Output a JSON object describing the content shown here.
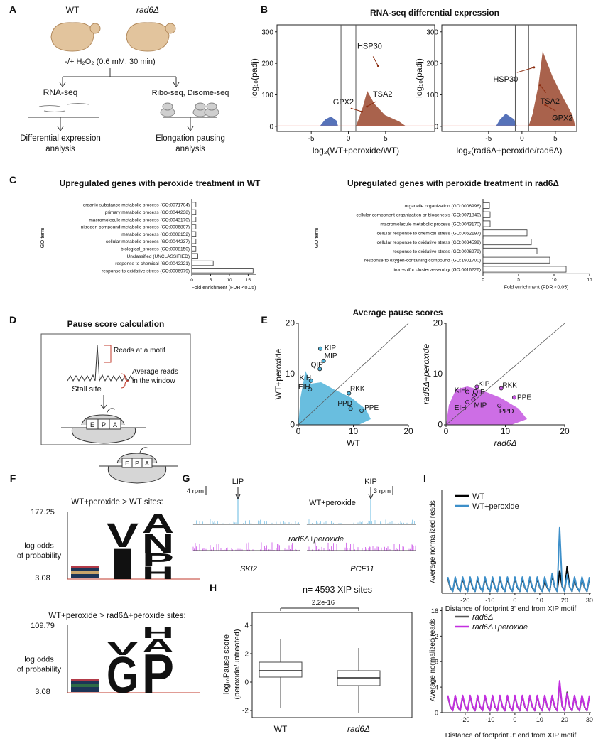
{
  "panel_labels": [
    "A",
    "B",
    "C",
    "D",
    "E",
    "F",
    "G",
    "H",
    "I"
  ],
  "A": {
    "strains": [
      "WT",
      "rad6Δ"
    ],
    "treatment": "-/+ H₂O₂ (0.6 mM, 30 min)",
    "branches": [
      "RNA-seq",
      "Ribo-seq, Disome-seq"
    ],
    "outcomes": [
      [
        "Differential expression",
        "analysis"
      ],
      [
        "Elongation pausing",
        "analysis"
      ]
    ]
  },
  "B": {
    "title": "RNA-seq differential expression",
    "plots": [
      {
        "type": "volcano",
        "xlabel": "log₂(WT+peroxide/WT)",
        "ylabel": "log₁₀(padj)",
        "xlim": [
          -9.6,
          11.6
        ],
        "ylim": [
          -16,
          322
        ],
        "xticks": [
          -5,
          0,
          5
        ],
        "yticks": [
          0,
          100,
          200,
          300
        ],
        "vlines": [
          -1,
          1
        ],
        "hline": 1.3,
        "genes": [
          {
            "name": "HSP30",
            "x": 4.0,
            "y": 192
          },
          {
            "name": "TSA2",
            "x": 2.5,
            "y": 63
          },
          {
            "name": "GPX2",
            "x": 1.8,
            "y": 47
          }
        ]
      },
      {
        "type": "volcano",
        "xlabel": "log₂(rad6Δ+peroxide/rad6Δ)",
        "ylabel": "log₁₀(padj)",
        "xlim": [
          -12,
          8.2
        ],
        "ylim": [
          -16,
          322
        ],
        "xticks": [
          -5,
          0,
          5
        ],
        "yticks": [
          0,
          100,
          200,
          300
        ],
        "vlines": [
          -1,
          1
        ],
        "hline": 1.3,
        "genes": [
          {
            "name": "HSP30",
            "x": 1.8,
            "y": 187
          },
          {
            "name": "TSA2",
            "x": 2.7,
            "y": 131
          },
          {
            "name": "GPX2",
            "x": 3.5,
            "y": 68
          }
        ]
      }
    ]
  },
  "C": {
    "charts": [
      {
        "type": "hbar",
        "title": "Upregulated genes with peroxide treatment in WT",
        "ylabel": "GO term",
        "xlabel": "Fold enrichment (FDR <0.05)",
        "xlim": [
          0,
          17
        ],
        "xticks": [
          0,
          5,
          10,
          15
        ],
        "categories": [
          "organic substance metabolic process (GO:0071704)",
          "primary metabolic process (GO:0044238)",
          "macromolecule metabolic process (GO:0043170)",
          "nitrogen compound metabolic process (GO:0006807)",
          "metabolic process (GO:0008152)",
          "cellular metabolic process (GO:0044237)",
          "biological_process (GO:0008150)",
          "Unclassified (UNCLASSIFIED)",
          "response to chemical (GO:0042221)",
          "response to oxidative stress (GO:0006979)"
        ],
        "values": [
          1.1,
          1.1,
          1.1,
          1.1,
          1.1,
          1.1,
          1.1,
          1.6,
          5.7,
          16.3
        ]
      },
      {
        "type": "hbar",
        "title": "Upregulated genes with peroxide treatment in rad6Δ",
        "ylabel": "GO term",
        "xlabel": "Fold enrichment (FDR <0.05)",
        "xlim": [
          0,
          15
        ],
        "xticks": [
          0,
          5,
          10,
          15
        ],
        "categories": [
          "organelle organization (GO:0006996)",
          "cellular component organization or biogenesis (GO:0071840)",
          "macromolecule metabolic process (GO:0043170)",
          "cellular response to chemical stress (GO:0062197)",
          "cellular response to oxidative stress (GO:0034599)",
          "response to oxidative stress (GO:0006979)",
          "response to oxygen-containing compound (GO:1901700)",
          "iron-sulfur cluster assembly (GO:0016226)"
        ],
        "values": [
          0.9,
          1.0,
          1.0,
          6.2,
          6.8,
          7.6,
          9.4,
          11.7
        ]
      }
    ]
  },
  "D": {
    "title": "Pause score calculation",
    "reads_label": "Reads at a motif",
    "window_label": [
      "Average reads",
      "in the window"
    ],
    "stall_label": "Stall site",
    "sites": [
      "E",
      "P",
      "A"
    ]
  },
  "E": {
    "title": "Average pause scores",
    "plots": [
      {
        "type": "scatter",
        "xlabel": "WT",
        "ylabel": "WT+peroxide",
        "color": "#4fb3d9",
        "xlim": [
          0,
          20
        ],
        "ylim": [
          0,
          20
        ],
        "xticks": [
          0,
          10,
          20
        ],
        "yticks": [
          0,
          10,
          20
        ],
        "points": [
          {
            "label": "KIP",
            "x": 4.0,
            "y": 15.0
          },
          {
            "label": "MIP",
            "x": 4.6,
            "y": 12.6
          },
          {
            "label": "QIP",
            "x": 3.9,
            "y": 11.0
          },
          {
            "label": "KIH",
            "x": 2.3,
            "y": 8.7
          },
          {
            "label": "EIH",
            "x": 2.1,
            "y": 7.0
          },
          {
            "label": "RKK",
            "x": 9.2,
            "y": 6.2
          },
          {
            "label": "PPD",
            "x": 9.5,
            "y": 3.2
          },
          {
            "label": "PPE",
            "x": 11.5,
            "y": 2.8
          }
        ]
      },
      {
        "type": "scatter",
        "xlabel": "rad6Δ",
        "ylabel": "rad6Δ+peroxide",
        "color": "#c455e0",
        "xlim": [
          0,
          20
        ],
        "ylim": [
          0,
          20
        ],
        "xticks": [
          0,
          10,
          20
        ],
        "yticks": [
          0,
          10,
          20
        ],
        "points": [
          {
            "label": "KIP",
            "x": 5.2,
            "y": 7.5
          },
          {
            "label": "MIP",
            "x": 4.6,
            "y": 5.0
          },
          {
            "label": "QIP",
            "x": 4.8,
            "y": 5.9
          },
          {
            "label": "KIH",
            "x": 3.6,
            "y": 6.5
          },
          {
            "label": "EIH",
            "x": 3.6,
            "y": 4.5
          },
          {
            "label": "RKK",
            "x": 9.3,
            "y": 7.2
          },
          {
            "label": "PPD",
            "x": 9.0,
            "y": 3.8
          },
          {
            "label": "PPE",
            "x": 11.5,
            "y": 5.4
          }
        ]
      }
    ]
  },
  "F": {
    "sites": [
      "E",
      "P",
      "A"
    ],
    "ylabel": [
      "log odds",
      "of probability"
    ],
    "logos": [
      {
        "title": "WT+peroxide > WT sites:",
        "ymax": 177.25,
        "ymin": 3.08,
        "letters": [
          {
            "char": "V",
            "color": "#111"
          },
          {
            "char": "I",
            "color": "#111"
          },
          {
            "char": "A",
            "color": "#1d3557"
          },
          {
            "char": "N",
            "color": "#c9a46a"
          },
          {
            "char": "P",
            "color": "#2e6b45"
          },
          {
            "char": "H",
            "color": "#1d3557"
          }
        ]
      },
      {
        "title": "WT+peroxide > rad6Δ+peroxide sites:",
        "ymax": 109.79,
        "ymin": 3.08,
        "letters": [
          {
            "char": "V",
            "color": "#111"
          },
          {
            "char": "G",
            "color": "#2e6b45"
          },
          {
            "char": "H",
            "color": "#1d3557"
          },
          {
            "char": "A",
            "color": "#1d3557"
          },
          {
            "char": "P",
            "color": "#2e6b45"
          }
        ]
      }
    ]
  },
  "G": {
    "scales": [
      "4 rpm",
      "3 rpm"
    ],
    "motifs": [
      "LIP",
      "KIP"
    ],
    "tracks": [
      "WT+peroxide",
      "rad6Δ+peroxide"
    ],
    "genes": [
      "SKI2",
      "PCF11"
    ]
  },
  "H": {
    "type": "box",
    "title": "n= 4593 XIP sites",
    "pvalue": "2.2e-16",
    "ylabel": [
      "log₁₀Pause score",
      "(peroxide/untreated)"
    ],
    "categories": [
      "WT",
      "rad6Δ"
    ],
    "ylim": [
      -2.5,
      4.9
    ],
    "yticks": [
      -2,
      0,
      2,
      4
    ],
    "boxes": [
      {
        "min": -1.8,
        "q1": 0.35,
        "median": 0.8,
        "q3": 1.4,
        "max": 3.0
      },
      {
        "min": -2.2,
        "q1": -0.25,
        "median": 0.3,
        "q3": 0.8,
        "max": 2.4
      }
    ]
  },
  "I": {
    "xlabel": "Distance of footprint 3' end from XIP motif",
    "ylabel": "Average normalized reads",
    "x": [
      -27,
      -26,
      -25,
      -24,
      -23,
      -22,
      -21,
      -20,
      -19,
      -18,
      -17,
      -16,
      -15,
      -14,
      -13,
      -12,
      -11,
      -10,
      -9,
      -8,
      -7,
      -6,
      -5,
      -4,
      -3,
      -2,
      -1,
      0,
      1,
      2,
      3,
      4,
      5,
      6,
      7,
      8,
      9,
      10,
      11,
      12,
      13,
      14,
      15,
      16,
      17,
      18,
      19,
      20,
      21,
      22,
      23,
      24,
      25,
      26,
      27,
      28,
      29,
      30
    ],
    "charts": [
      {
        "type": "line",
        "xlim": [
          -29.4,
          30.6
        ],
        "ylim": [
          0,
          16.5
        ],
        "xticks": [
          -20,
          -10,
          0,
          10,
          20,
          30
        ],
        "series": [
          {
            "name": "WT",
            "color": "#000000",
            "values": [
              2.4,
              0.9,
              0.3,
              2.4,
              0.9,
              0.3,
              2.4,
              0.9,
              0.3,
              2.4,
              0.9,
              0.3,
              2.4,
              0.9,
              0.3,
              2.4,
              0.9,
              0.3,
              2.4,
              0.9,
              0.3,
              2.4,
              0.9,
              0.3,
              2.4,
              0.9,
              0.3,
              2.4,
              0.9,
              0.3,
              2.4,
              0.9,
              0.3,
              2.4,
              0.9,
              0.3,
              2.4,
              0.9,
              0.3,
              2.0,
              0.9,
              0.3,
              2.9,
              1.0,
              0.3,
              3.6,
              1.1,
              0.3,
              4.3,
              1.0,
              0.3,
              2.2,
              0.9,
              0.3,
              2.4,
              0.9,
              0.3,
              2.4
            ]
          },
          {
            "name": "WT+peroxide",
            "color": "#3d8fc9",
            "values": [
              2.6,
              1.0,
              0.3,
              2.6,
              1.0,
              0.3,
              2.6,
              1.0,
              0.3,
              2.6,
              1.0,
              0.3,
              2.6,
              1.0,
              0.3,
              2.6,
              1.0,
              0.3,
              2.6,
              1.0,
              0.3,
              2.6,
              1.0,
              0.3,
              2.6,
              1.0,
              0.3,
              2.6,
              1.0,
              0.3,
              2.6,
              1.0,
              0.3,
              2.6,
              1.0,
              0.3,
              2.6,
              1.0,
              0.3,
              2.6,
              1.0,
              0.3,
              3.2,
              1.0,
              0.3,
              10.5,
              1.2,
              0.3,
              3.0,
              1.0,
              0.3,
              2.6,
              1.0,
              0.3,
              2.6,
              1.0,
              0.3,
              2.6
            ]
          }
        ]
      },
      {
        "type": "line",
        "xlim": [
          -29.4,
          30.6
        ],
        "ylim": [
          0,
          16.5
        ],
        "xticks": [
          -20,
          -10,
          0,
          10,
          20,
          30
        ],
        "yticks": [
          0,
          4,
          8,
          12,
          16
        ],
        "series": [
          {
            "name": "rad6Δ",
            "color": "#555555",
            "values": [
              2.6,
              0.9,
              0.3,
              2.6,
              0.9,
              0.3,
              2.6,
              0.9,
              0.3,
              2.6,
              0.9,
              0.3,
              2.6,
              0.9,
              0.3,
              2.6,
              0.9,
              0.3,
              2.6,
              0.9,
              0.3,
              2.6,
              0.9,
              0.3,
              2.6,
              0.9,
              0.3,
              2.6,
              0.9,
              0.3,
              2.6,
              0.9,
              0.3,
              2.6,
              0.9,
              0.3,
              2.6,
              0.9,
              0.3,
              2.6,
              0.9,
              0.3,
              2.6,
              0.9,
              0.3,
              4.6,
              1.0,
              0.3,
              3.2,
              0.9,
              0.3,
              2.6,
              0.9,
              0.3,
              2.6,
              0.9,
              0.3,
              2.6
            ]
          },
          {
            "name": "rad6Δ+peroxide",
            "color": "#c32ee0",
            "values": [
              2.7,
              1.0,
              0.3,
              2.7,
              1.0,
              0.3,
              2.7,
              1.0,
              0.3,
              2.7,
              1.0,
              0.3,
              2.7,
              1.0,
              0.3,
              2.7,
              1.0,
              0.3,
              2.7,
              1.0,
              0.3,
              2.7,
              1.0,
              0.3,
              2.7,
              1.0,
              0.3,
              2.7,
              1.0,
              0.3,
              2.7,
              1.0,
              0.3,
              2.7,
              1.0,
              0.3,
              2.7,
              1.0,
              0.3,
              2.7,
              1.0,
              0.3,
              2.7,
              1.0,
              0.3,
              5.0,
              1.1,
              0.3,
              3.0,
              1.0,
              0.3,
              2.7,
              1.0,
              0.3,
              2.7,
              1.0,
              0.3,
              2.7
            ]
          }
        ]
      }
    ]
  }
}
